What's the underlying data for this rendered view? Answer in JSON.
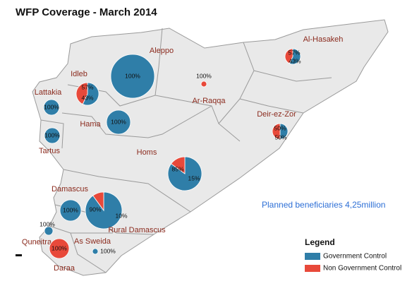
{
  "title": "WFP Coverage - March 2014",
  "annotation": "Planned beneficiaries 4,25million",
  "legend": {
    "title": "Legend",
    "items": [
      {
        "label": "Government Control",
        "color": "#2f7ea8"
      },
      {
        "label": "Non Government Control",
        "color": "#e8493a"
      }
    ]
  },
  "regions": [
    {
      "name": "Aleppo",
      "values": [
        100,
        null
      ],
      "value_labels": [
        "100%",
        null
      ]
    },
    {
      "name": "Idleb",
      "values": [
        57,
        43
      ],
      "value_labels": [
        "57%",
        "43%"
      ]
    },
    {
      "name": "Lattakia",
      "values": [
        100,
        null
      ],
      "value_labels": [
        "100%",
        null
      ]
    },
    {
      "name": "Tartus",
      "values": [
        100,
        null
      ],
      "value_labels": [
        "100%",
        null
      ]
    },
    {
      "name": "Hama",
      "values": [
        100,
        null
      ],
      "value_labels": [
        "100%",
        null
      ]
    },
    {
      "name": "Ar-Raqqa",
      "values": [
        null,
        100
      ],
      "value_labels": [
        null,
        "100%"
      ]
    },
    {
      "name": "Al-Hasakeh",
      "values": [
        57,
        43
      ],
      "value_labels": [
        "57%",
        "43%"
      ]
    },
    {
      "name": "Deir-ez-Zor",
      "values": [
        50,
        50
      ],
      "value_labels": [
        "50%",
        "50%"
      ]
    },
    {
      "name": "Homs",
      "values": [
        85,
        15
      ],
      "value_labels": [
        "85%",
        "15%"
      ]
    },
    {
      "name": "Damascus",
      "values": [
        100,
        null
      ],
      "value_labels": [
        "100%",
        null
      ]
    },
    {
      "name": "Rural Damascus",
      "values": [
        90,
        10
      ],
      "value_labels": [
        "90%",
        "10%"
      ]
    },
    {
      "name": "Quneitra",
      "values": [
        100,
        null
      ],
      "value_labels": [
        "100%",
        null
      ]
    },
    {
      "name": "Daraa",
      "values": [
        null,
        100
      ],
      "value_labels": [
        null,
        "100%"
      ]
    },
    {
      "name": "As Sweida",
      "values": [
        100,
        null
      ],
      "value_labels": [
        "100%",
        null
      ]
    }
  ]
}
